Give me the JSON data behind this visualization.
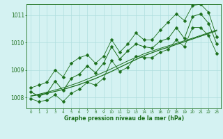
{
  "xlabel": "Graphe pression niveau de la mer (hPa)",
  "hours": [
    0,
    1,
    2,
    3,
    4,
    5,
    6,
    7,
    8,
    9,
    10,
    11,
    12,
    13,
    14,
    15,
    16,
    17,
    18,
    19,
    20,
    21,
    22,
    23
  ],
  "pressure_main": [
    1008.2,
    1008.05,
    1008.15,
    1008.6,
    1008.25,
    1008.7,
    1008.85,
    1009.15,
    1008.9,
    1009.25,
    1009.85,
    1009.4,
    1009.7,
    1009.95,
    1009.85,
    1009.8,
    1010.05,
    1010.15,
    1010.55,
    1010.15,
    1010.95,
    1011.05,
    1010.7,
    1009.95
  ],
  "pressure_max": [
    1008.35,
    1008.45,
    1008.55,
    1009.0,
    1008.75,
    1009.25,
    1009.45,
    1009.55,
    1009.25,
    1009.5,
    1010.1,
    1009.65,
    1009.95,
    1010.35,
    1010.1,
    1010.1,
    1010.45,
    1010.75,
    1011.05,
    1010.8,
    1011.35,
    1011.4,
    1011.1,
    1010.2
  ],
  "pressure_min": [
    1007.95,
    1007.85,
    1007.9,
    1008.1,
    1007.85,
    1008.15,
    1008.3,
    1008.55,
    1008.45,
    1008.7,
    1009.35,
    1008.95,
    1009.1,
    1009.5,
    1009.45,
    1009.45,
    1009.65,
    1009.75,
    1010.1,
    1009.85,
    1010.55,
    1010.55,
    1010.25,
    1009.6
  ],
  "trend1": [
    1008.05,
    1008.1,
    1008.15,
    1008.22,
    1008.29,
    1008.38,
    1008.47,
    1008.58,
    1008.69,
    1008.82,
    1008.95,
    1009.1,
    1009.24,
    1009.38,
    1009.52,
    1009.63,
    1009.74,
    1009.83,
    1009.93,
    1010.03,
    1010.13,
    1010.23,
    1010.33,
    1010.43
  ],
  "trend2": [
    1008.05,
    1008.12,
    1008.19,
    1008.27,
    1008.35,
    1008.45,
    1008.55,
    1008.67,
    1008.79,
    1008.92,
    1009.05,
    1009.19,
    1009.33,
    1009.46,
    1009.59,
    1009.69,
    1009.79,
    1009.88,
    1009.97,
    1010.07,
    1010.16,
    1010.26,
    1010.36,
    1010.46
  ],
  "ylim_min": 1007.6,
  "ylim_max": 1011.4,
  "yticks": [
    1008,
    1009,
    1010,
    1011
  ],
  "line_color": "#1a6e1a",
  "bg_color": "#d4f2f2",
  "grid_color": "#b0dede",
  "marker_size": 2.5
}
